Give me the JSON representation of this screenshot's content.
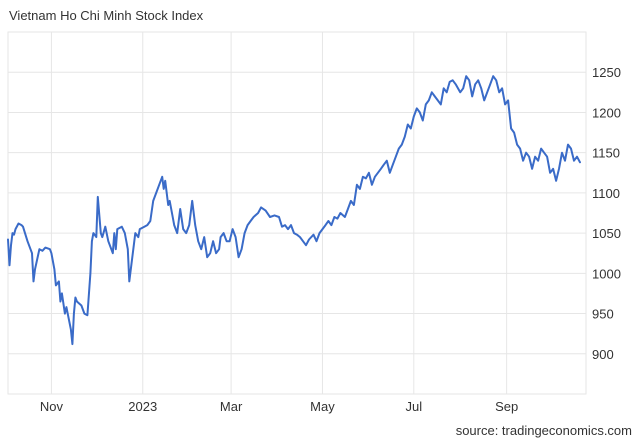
{
  "source": "source: tradingeconomics.com",
  "chart_data": {
    "type": "line",
    "title": "Vietnam Ho Chi Minh Stock Index",
    "xlabel": "",
    "ylabel": "",
    "ylim": [
      850,
      1300
    ],
    "xlim": [
      "2022-10-03",
      "2023-10-24"
    ],
    "grid": true,
    "x_ticks": [
      {
        "label": "Nov",
        "date": "2022-11-01"
      },
      {
        "label": "2023",
        "date": "2023-01-01"
      },
      {
        "label": "Mar",
        "date": "2023-03-01"
      },
      {
        "label": "May",
        "date": "2023-05-01"
      },
      {
        "label": "Jul",
        "date": "2023-07-01"
      },
      {
        "label": "Sep",
        "date": "2023-09-01"
      }
    ],
    "y_ticks": [
      900,
      950,
      1000,
      1050,
      1100,
      1150,
      1200,
      1250
    ],
    "line_color": "#3a6bc8",
    "series": [
      {
        "x": [
          "2022-10-03",
          "2022-10-04",
          "2022-10-05",
          "2022-10-06",
          "2022-10-07",
          "2022-10-08",
          "2022-10-10",
          "2022-10-12",
          "2022-10-13",
          "2022-10-16",
          "2022-10-19",
          "2022-10-20",
          "2022-10-21",
          "2022-10-24",
          "2022-10-26",
          "2022-10-28",
          "2022-10-31",
          "2022-11-01",
          "2022-11-03",
          "2022-11-04",
          "2022-11-06",
          "2022-11-07",
          "2022-11-08",
          "2022-11-10",
          "2022-11-11",
          "2022-11-14",
          "2022-11-15",
          "2022-11-16",
          "2022-11-17",
          "2022-11-18",
          "2022-11-21",
          "2022-11-23",
          "2022-11-25",
          "2022-11-27",
          "2022-11-28",
          "2022-11-29",
          "2022-12-01",
          "2022-12-02",
          "2022-12-04",
          "2022-12-05",
          "2022-12-07",
          "2022-12-09",
          "2022-12-12",
          "2022-12-13",
          "2022-12-14",
          "2022-12-15",
          "2022-12-18",
          "2022-12-20",
          "2022-12-22",
          "2022-12-23",
          "2022-12-26",
          "2022-12-27",
          "2022-12-29",
          "2022-12-30",
          "2023-01-02",
          "2023-01-04",
          "2023-01-06",
          "2023-01-08",
          "2023-01-10",
          "2023-01-12",
          "2023-01-14",
          "2023-01-15",
          "2023-01-16",
          "2023-01-18",
          "2023-01-19",
          "2023-01-21",
          "2023-01-22",
          "2023-01-24",
          "2023-01-26",
          "2023-01-28",
          "2023-01-30",
          "2023-02-01",
          "2023-02-03",
          "2023-02-05",
          "2023-02-07",
          "2023-02-09",
          "2023-02-11",
          "2023-02-13",
          "2023-02-15",
          "2023-02-17",
          "2023-02-19",
          "2023-02-21",
          "2023-02-22",
          "2023-02-24",
          "2023-02-26",
          "2023-02-28",
          "2023-03-02",
          "2023-03-04",
          "2023-03-06",
          "2023-03-08",
          "2023-03-10",
          "2023-03-12",
          "2023-03-14",
          "2023-03-16",
          "2023-03-19",
          "2023-03-21",
          "2023-03-24",
          "2023-03-27",
          "2023-03-30",
          "2023-04-02",
          "2023-04-04",
          "2023-04-06",
          "2023-04-08",
          "2023-04-10",
          "2023-04-12",
          "2023-04-14",
          "2023-04-16",
          "2023-04-18",
          "2023-04-20",
          "2023-04-22",
          "2023-04-25",
          "2023-04-27",
          "2023-04-29",
          "2023-05-01",
          "2023-05-03",
          "2023-05-05",
          "2023-05-07",
          "2023-05-09",
          "2023-05-11",
          "2023-05-13",
          "2023-05-16",
          "2023-05-18",
          "2023-05-20",
          "2023-05-22",
          "2023-05-24",
          "2023-05-26",
          "2023-05-28",
          "2023-05-30",
          "2023-06-01",
          "2023-06-03",
          "2023-06-05",
          "2023-06-07",
          "2023-06-09",
          "2023-06-11",
          "2023-06-13",
          "2023-06-15",
          "2023-06-17",
          "2023-06-19",
          "2023-06-21",
          "2023-06-23",
          "2023-06-25",
          "2023-06-27",
          "2023-06-29",
          "2023-07-01",
          "2023-07-03",
          "2023-07-05",
          "2023-07-07",
          "2023-07-09",
          "2023-07-11",
          "2023-07-13",
          "2023-07-15",
          "2023-07-17",
          "2023-07-19",
          "2023-07-21",
          "2023-07-23",
          "2023-07-25",
          "2023-07-27",
          "2023-07-29",
          "2023-08-01",
          "2023-08-03",
          "2023-08-05",
          "2023-08-07",
          "2023-08-09",
          "2023-08-11",
          "2023-08-13",
          "2023-08-15",
          "2023-08-17",
          "2023-08-19",
          "2023-08-21",
          "2023-08-23",
          "2023-08-25",
          "2023-08-27",
          "2023-08-29",
          "2023-08-31",
          "2023-09-02",
          "2023-09-04",
          "2023-09-06",
          "2023-09-08",
          "2023-09-10",
          "2023-09-12",
          "2023-09-14",
          "2023-09-16",
          "2023-09-18",
          "2023-09-20",
          "2023-09-22",
          "2023-09-24",
          "2023-09-26",
          "2023-09-28",
          "2023-09-30",
          "2023-10-02",
          "2023-10-04",
          "2023-10-06",
          "2023-10-08",
          "2023-10-10",
          "2023-10-12",
          "2023-10-14",
          "2023-10-16",
          "2023-10-18",
          "2023-10-20"
        ],
        "y": [
          1042,
          1010,
          1035,
          1050,
          1048,
          1055,
          1062,
          1060,
          1058,
          1040,
          1025,
          990,
          1005,
          1030,
          1028,
          1032,
          1030,
          1025,
          1005,
          985,
          990,
          965,
          975,
          950,
          958,
          930,
          912,
          950,
          970,
          965,
          960,
          950,
          948,
          1000,
          1040,
          1050,
          1045,
          1095,
          1050,
          1045,
          1058,
          1040,
          1025,
          1050,
          1030,
          1055,
          1058,
          1050,
          1030,
          990,
          1035,
          1050,
          1045,
          1055,
          1058,
          1060,
          1065,
          1090,
          1100,
          1110,
          1120,
          1105,
          1115,
          1085,
          1090,
          1070,
          1060,
          1050,
          1080,
          1055,
          1050,
          1060,
          1090,
          1060,
          1040,
          1030,
          1045,
          1020,
          1025,
          1040,
          1025,
          1030,
          1045,
          1050,
          1040,
          1040,
          1055,
          1045,
          1020,
          1030,
          1050,
          1060,
          1065,
          1070,
          1075,
          1082,
          1078,
          1070,
          1072,
          1070,
          1058,
          1060,
          1055,
          1060,
          1050,
          1048,
          1045,
          1040,
          1035,
          1042,
          1048,
          1040,
          1050,
          1055,
          1060,
          1065,
          1060,
          1070,
          1068,
          1075,
          1070,
          1080,
          1090,
          1085,
          1110,
          1105,
          1120,
          1118,
          1125,
          1110,
          1120,
          1125,
          1130,
          1135,
          1140,
          1125,
          1135,
          1145,
          1155,
          1160,
          1170,
          1185,
          1180,
          1195,
          1205,
          1200,
          1190,
          1210,
          1215,
          1225,
          1220,
          1215,
          1210,
          1230,
          1225,
          1238,
          1240,
          1235,
          1225,
          1230,
          1245,
          1240,
          1220,
          1235,
          1240,
          1230,
          1215,
          1225,
          1235,
          1245,
          1240,
          1225,
          1230,
          1210,
          1215,
          1180,
          1175,
          1160,
          1155,
          1140,
          1150,
          1145,
          1130,
          1145,
          1140,
          1155,
          1150,
          1145,
          1125,
          1130,
          1115,
          1130,
          1150,
          1140,
          1160,
          1155,
          1140,
          1145,
          1138
        ]
      }
    ]
  }
}
